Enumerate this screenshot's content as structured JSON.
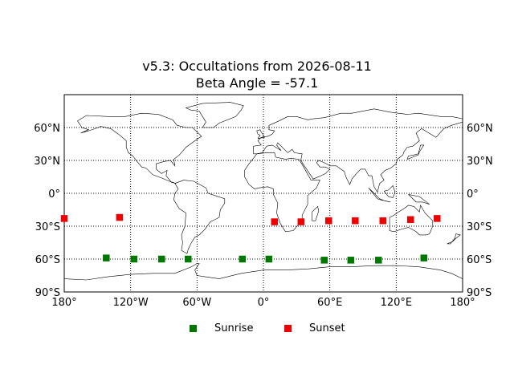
{
  "title": {
    "line1": "v5.3: Occultations from 2026-08-11",
    "line2": "Beta Angle = -57.1"
  },
  "colors": {
    "sunrise": "#007800",
    "sunset": "#ee0000",
    "coast": "#000000",
    "grid": "#000000"
  },
  "map": {
    "projection": "equirectangular",
    "lon_range": [
      -180,
      180
    ],
    "lat_range": [
      -90,
      90
    ],
    "grid_dotted": true
  },
  "x_ticks": [
    {
      "lon": -180,
      "label": "180°"
    },
    {
      "lon": -120,
      "label": "120°W"
    },
    {
      "lon": -60,
      "label": "60°W"
    },
    {
      "lon": 0,
      "label": "0°"
    },
    {
      "lon": 60,
      "label": "60°E"
    },
    {
      "lon": 120,
      "label": "120°E"
    },
    {
      "lon": 180,
      "label": "180°"
    }
  ],
  "y_ticks": [
    {
      "lat": 60,
      "label": "60°N"
    },
    {
      "lat": 30,
      "label": "30°N"
    },
    {
      "lat": 0,
      "label": "0°"
    },
    {
      "lat": -30,
      "label": "30°S"
    },
    {
      "lat": -60,
      "label": "60°S"
    },
    {
      "lat": -90,
      "label": "90°S"
    }
  ],
  "legend": {
    "sunrise": "Sunrise",
    "sunset": "Sunset",
    "placement": "bottom-center"
  },
  "chart_data": {
    "type": "scatter",
    "series": [
      {
        "name": "Sunrise",
        "points": [
          {
            "lon": -142,
            "lat": -59
          },
          {
            "lon": -117,
            "lat": -60
          },
          {
            "lon": -92,
            "lat": -60
          },
          {
            "lon": -68,
            "lat": -60
          },
          {
            "lon": -19,
            "lat": -60
          },
          {
            "lon": 5,
            "lat": -60
          },
          {
            "lon": 55,
            "lat": -61
          },
          {
            "lon": 79,
            "lat": -61
          },
          {
            "lon": 104,
            "lat": -61
          },
          {
            "lon": 145,
            "lat": -59
          }
        ]
      },
      {
        "name": "Sunset",
        "points": [
          {
            "lon": -180,
            "lat": -23
          },
          {
            "lon": -130,
            "lat": -22
          },
          {
            "lon": 10,
            "lat": -26
          },
          {
            "lon": 34,
            "lat": -26
          },
          {
            "lon": 59,
            "lat": -25
          },
          {
            "lon": 83,
            "lat": -25
          },
          {
            "lon": 108,
            "lat": -25
          },
          {
            "lon": 133,
            "lat": -24
          },
          {
            "lon": 157,
            "lat": -23
          }
        ]
      }
    ]
  }
}
